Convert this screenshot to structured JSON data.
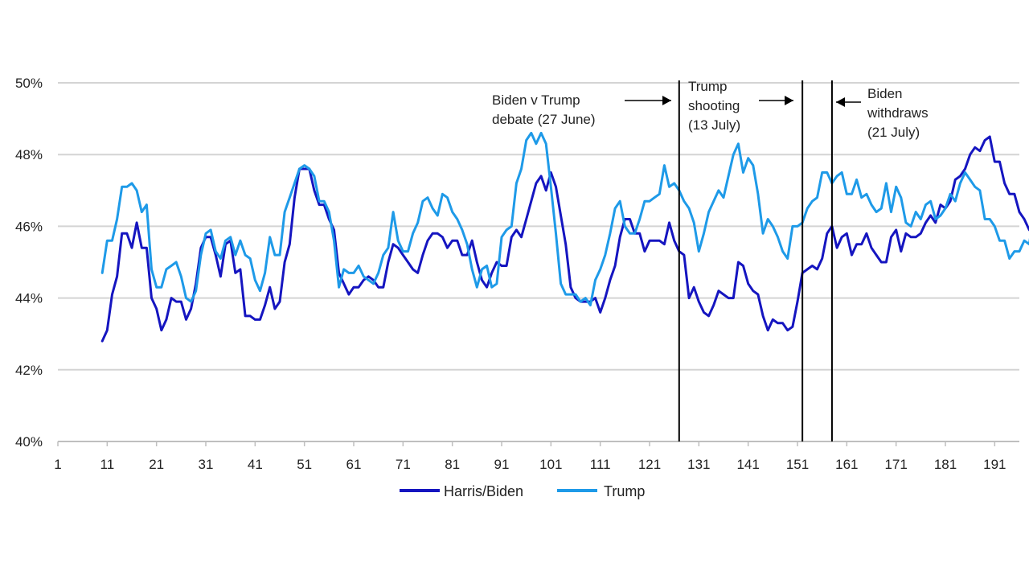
{
  "chart_data": {
    "type": "line",
    "title": "",
    "xlabel": "",
    "ylabel": "",
    "xlim": [
      1,
      196
    ],
    "ylim": [
      40,
      50
    ],
    "x_ticks": [
      "1",
      "11",
      "21",
      "31",
      "41",
      "51",
      "61",
      "71",
      "81",
      "91",
      "101",
      "111",
      "121",
      "131",
      "141",
      "151",
      "161",
      "171",
      "181",
      "191"
    ],
    "y_ticks": [
      "40%",
      "42%",
      "44%",
      "46%",
      "48%",
      "50%"
    ],
    "grid": "horizontal",
    "legend_position": "bottom-center",
    "x_start": 10,
    "series": [
      {
        "name": "Harris/Biden",
        "color": "#1515c0",
        "values": [
          42.8,
          43.1,
          44.1,
          44.6,
          45.8,
          45.8,
          45.4,
          46.1,
          45.4,
          45.4,
          44.0,
          43.7,
          43.1,
          43.4,
          44.0,
          43.9,
          43.9,
          43.4,
          43.7,
          44.4,
          45.4,
          45.7,
          45.7,
          45.2,
          44.6,
          45.5,
          45.6,
          44.7,
          44.8,
          43.5,
          43.5,
          43.4,
          43.4,
          43.8,
          44.3,
          43.7,
          43.9,
          45.0,
          45.5,
          46.8,
          47.6,
          47.6,
          47.6,
          47.0,
          46.6,
          46.6,
          46.2,
          45.9,
          44.7,
          44.4,
          44.1,
          44.3,
          44.3,
          44.5,
          44.6,
          44.5,
          44.3,
          44.3,
          45.0,
          45.5,
          45.4,
          45.2,
          45.0,
          44.8,
          44.7,
          45.2,
          45.6,
          45.8,
          45.8,
          45.7,
          45.4,
          45.6,
          45.6,
          45.2,
          45.2,
          45.6,
          45.0,
          44.5,
          44.3,
          44.7,
          45.0,
          44.9,
          44.9,
          45.7,
          45.9,
          45.7,
          46.2,
          46.7,
          47.2,
          47.4,
          47.0,
          47.5,
          47.1,
          46.3,
          45.5,
          44.3,
          44.0,
          43.9,
          43.9,
          43.9,
          44.0,
          43.6,
          44.0,
          44.5,
          44.9,
          45.7,
          46.2,
          46.2,
          45.8,
          45.8,
          45.3,
          45.6,
          45.6,
          45.6,
          45.5,
          46.1,
          45.6,
          45.3,
          45.2,
          44.0,
          44.3,
          43.9,
          43.6,
          43.5,
          43.8,
          44.2,
          44.1,
          44.0,
          44.0,
          45.0,
          44.9,
          44.4,
          44.2,
          44.1,
          43.5,
          43.1,
          43.4,
          43.3,
          43.3,
          43.1,
          43.2,
          43.9,
          44.7,
          44.8,
          44.9,
          44.8,
          45.1,
          45.8,
          46.0,
          45.4,
          45.7,
          45.8,
          45.2,
          45.5,
          45.5,
          45.8,
          45.4,
          45.2,
          45.0,
          45.0,
          45.7,
          45.9,
          45.3,
          45.8,
          45.7,
          45.7,
          45.8,
          46.1,
          46.3,
          46.1,
          46.6,
          46.5,
          46.7,
          47.3,
          47.4,
          47.6,
          48.0,
          48.2,
          48.1,
          48.4,
          48.5,
          47.8,
          47.8,
          47.2,
          46.9,
          46.9,
          46.4,
          46.2,
          45.9,
          46.4,
          45.9,
          46.7
        ]
      },
      {
        "name": "Trump",
        "color": "#1e9ae8",
        "values": [
          44.7,
          45.6,
          45.6,
          46.2,
          47.1,
          47.1,
          47.2,
          47.0,
          46.4,
          46.6,
          44.8,
          44.3,
          44.3,
          44.8,
          44.9,
          45.0,
          44.6,
          44.0,
          43.9,
          44.2,
          45.2,
          45.8,
          45.9,
          45.3,
          45.1,
          45.6,
          45.7,
          45.2,
          45.6,
          45.2,
          45.1,
          44.5,
          44.2,
          44.7,
          45.7,
          45.2,
          45.2,
          46.4,
          46.8,
          47.2,
          47.6,
          47.7,
          47.6,
          47.4,
          46.7,
          46.7,
          46.4,
          45.6,
          44.3,
          44.8,
          44.7,
          44.7,
          44.9,
          44.6,
          44.5,
          44.4,
          44.7,
          45.2,
          45.4,
          46.4,
          45.6,
          45.3,
          45.3,
          45.8,
          46.1,
          46.7,
          46.8,
          46.5,
          46.3,
          46.9,
          46.8,
          46.4,
          46.2,
          45.9,
          45.5,
          44.8,
          44.3,
          44.8,
          44.9,
          44.3,
          44.4,
          45.7,
          45.9,
          46.0,
          47.2,
          47.6,
          48.4,
          48.6,
          48.3,
          48.6,
          48.3,
          47.1,
          45.8,
          44.4,
          44.1,
          44.1,
          44.1,
          43.9,
          44.0,
          43.8,
          44.5,
          44.8,
          45.2,
          45.8,
          46.5,
          46.7,
          46.0,
          45.8,
          45.8,
          46.2,
          46.7,
          46.7,
          46.8,
          46.9,
          47.7,
          47.1,
          47.2,
          47.0,
          46.7,
          46.5,
          46.1,
          45.3,
          45.8,
          46.4,
          46.7,
          47.0,
          46.8,
          47.4,
          48.0,
          48.3,
          47.5,
          47.9,
          47.7,
          46.9,
          45.8,
          46.2,
          46.0,
          45.7,
          45.3,
          45.1,
          46.0,
          46.0,
          46.1,
          46.5,
          46.7,
          46.8,
          47.5,
          47.5,
          47.2,
          47.4,
          47.5,
          46.9,
          46.9,
          47.3,
          46.8,
          46.9,
          46.6,
          46.4,
          46.5,
          47.2,
          46.4,
          47.1,
          46.8,
          46.1,
          46.0,
          46.4,
          46.2,
          46.6,
          46.7,
          46.2,
          46.3,
          46.5,
          46.9,
          46.7,
          47.2,
          47.5,
          47.3,
          47.1,
          47.0,
          46.2,
          46.2,
          46.0,
          45.6,
          45.6,
          45.1,
          45.3,
          45.3,
          45.6,
          45.5,
          46.4
        ]
      }
    ],
    "event_lines": [
      {
        "x": 127,
        "label_lines": [
          "Biden v Trump",
          "debate  (27 June)"
        ],
        "arrow": "right"
      },
      {
        "x": 152,
        "label_lines": [
          "Trump",
          "shooting",
          "(13 July)"
        ],
        "arrow": "right"
      },
      {
        "x": 158,
        "label_lines": [
          "Biden",
          "withdraws",
          "(21 July)"
        ],
        "arrow": "left"
      }
    ]
  }
}
